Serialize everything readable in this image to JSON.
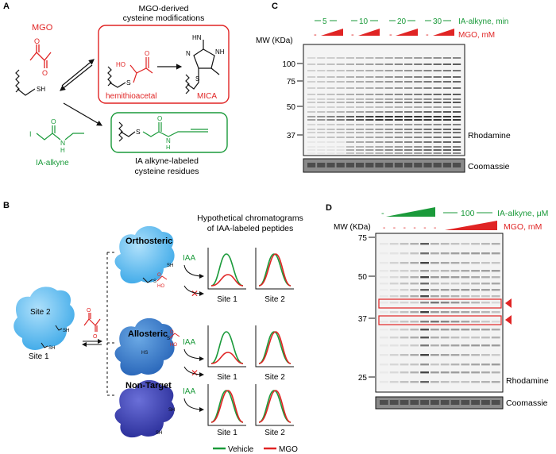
{
  "panel_labels": {
    "a": "A",
    "b": "B",
    "c": "C",
    "d": "D"
  },
  "panel_a": {
    "mgo": "MGO",
    "box_title_1": "MGO-derived",
    "box_title_2": "cysteine modifications",
    "thiol": "SH",
    "s_atom": "S",
    "hemithioacetal": "hemithioacetal",
    "mica": "MICA",
    "ho": "HO",
    "nh": "NH",
    "hn": "HN",
    "n": "N",
    "o": "O",
    "i": "I",
    "h": "H",
    "ia_alkyne": "IA-alkyne",
    "labeled_1": "IA alkyne-labeled",
    "labeled_2": "cysteine residues",
    "colors": {
      "red": "#e02424",
      "green": "#1a9a3a"
    }
  },
  "panel_b": {
    "header_1": "Hypothetical chromatograms",
    "header_2": "of IAA-labeled peptides",
    "site1": "Site 1",
    "site2": "Site 2",
    "sh": "SH",
    "hs": "HS",
    "s": "S",
    "ho": "HO",
    "o": "O",
    "iaa": "IAA",
    "rows": [
      {
        "name": "Orthosteric",
        "site1": "Site 1",
        "site2": "Site 2"
      },
      {
        "name": "Allosteric",
        "site1": "Site 1",
        "site2": "Site 2"
      },
      {
        "name": "Non-Target",
        "site1": "Site 1",
        "site2": "Site 2"
      }
    ],
    "legend": {
      "vehicle": "Vehicle",
      "mgo": "MGO"
    }
  },
  "panel_c": {
    "time_label": "IA-alkyne, min",
    "times": [
      "5",
      "10",
      "20",
      "30"
    ],
    "mgo_label": "MGO, mM",
    "minus": "-",
    "mw_label": "MW (KDa)",
    "mw_ticks": [
      "100",
      "75",
      "50",
      "37"
    ],
    "rhodamine": "Rhodamine",
    "coomassie": "Coomassie"
  },
  "panel_d": {
    "dash": "-",
    "conc": "100",
    "ia_label": "IA-alkyne, μM",
    "mgo_label": "MGO, mM",
    "mw_label": "MW (KDa)",
    "mw_ticks": [
      "75",
      "50",
      "37",
      "25"
    ],
    "minus": "-",
    "rhodamine": "Rhodamine",
    "coomassie": "Coomassie"
  }
}
